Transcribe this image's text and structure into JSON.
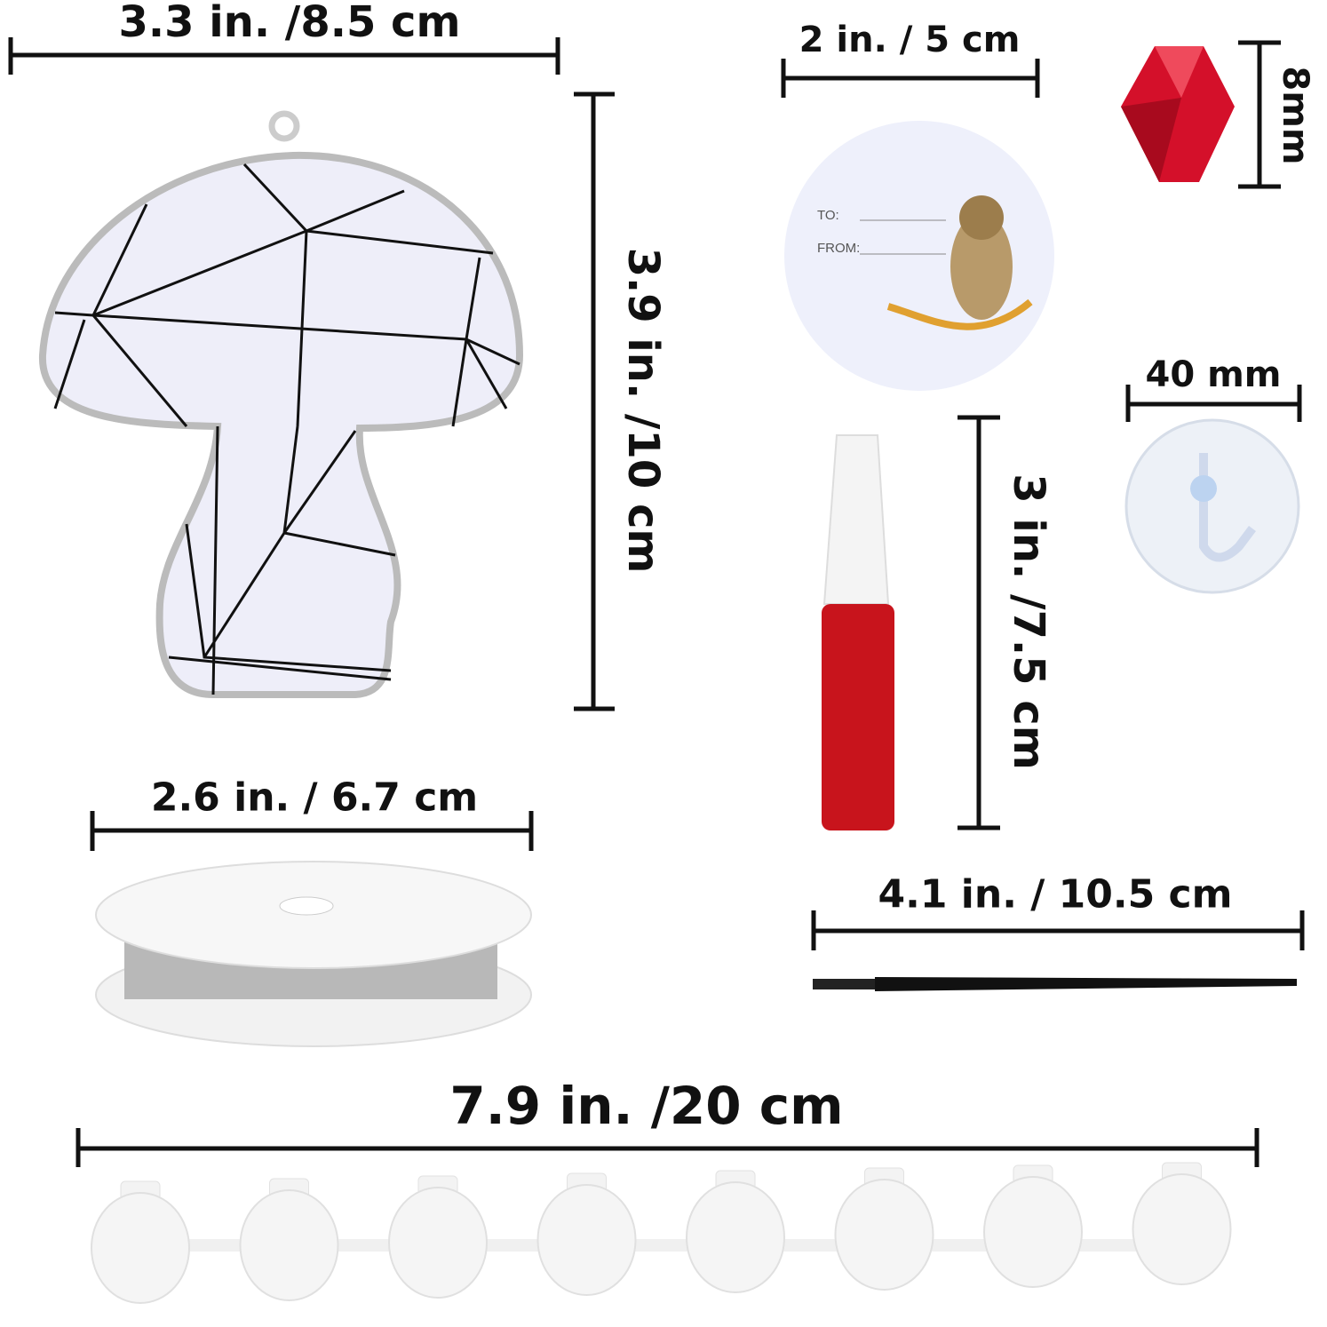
{
  "dimensions": {
    "mushroom_width": "3.3 in. /8.5 cm",
    "mushroom_height": "3.9 in. /10 cm",
    "tag_width": "2 in. / 5 cm",
    "bead_size": "8mm",
    "hook_width": "40 mm",
    "paint_height": "3 in. /7.5 cm",
    "spool_width": "2.6 in. / 6.7 cm",
    "brush_length": "4.1 in. / 10.5 cm",
    "paint_strip_length": "7.9 in. /20 cm"
  },
  "tag": {
    "to_label": "TO:",
    "from_label": "FROM:"
  },
  "colors": {
    "bead": "#d4102a",
    "paint": "#c8141c",
    "mushroom_fill": "#eeeef9",
    "tag_fill": "#eef0fb"
  }
}
